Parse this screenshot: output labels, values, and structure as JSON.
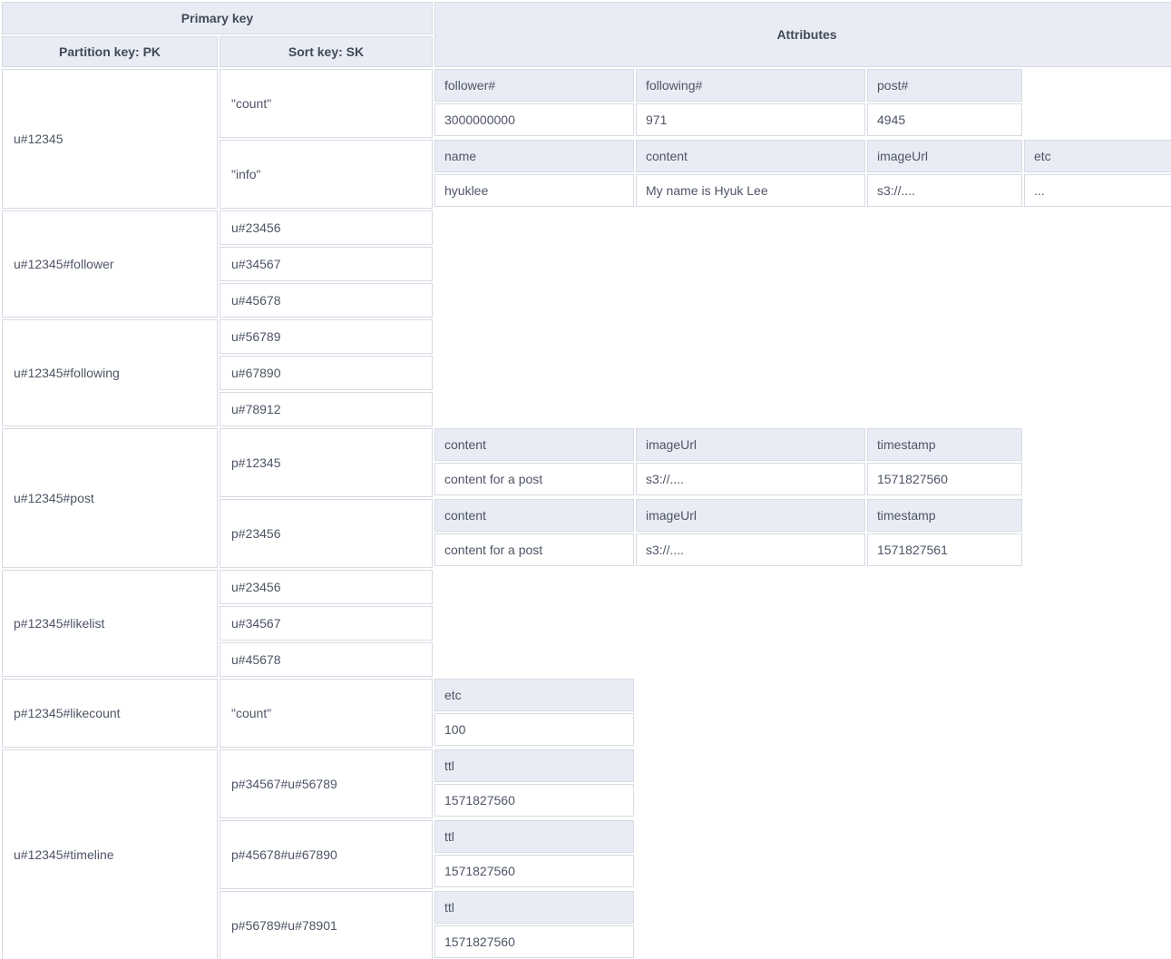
{
  "table": {
    "header": {
      "primary_key": "Primary key",
      "partition_key": "Partition key: PK",
      "sort_key": "Sort key: SK",
      "attributes": "Attributes"
    },
    "sections": [
      {
        "pk": "u#12345",
        "rows": [
          {
            "sk": "\"count\"",
            "attrs": {
              "headers": [
                "follower#",
                "following#",
                "post#"
              ],
              "values": [
                "3000000000",
                "971",
                "4945"
              ]
            }
          },
          {
            "sk": "\"info\"",
            "attrs": {
              "headers": [
                "name",
                "content",
                "imageUrl",
                "etc"
              ],
              "values": [
                "hyuklee",
                "My name is Hyuk Lee",
                "s3://....",
                "..."
              ]
            }
          }
        ]
      },
      {
        "pk": "u#12345#follower",
        "rows": [
          {
            "sk": "u#23456"
          },
          {
            "sk": "u#34567"
          },
          {
            "sk": "u#45678"
          }
        ]
      },
      {
        "pk": "u#12345#following",
        "rows": [
          {
            "sk": "u#56789"
          },
          {
            "sk": "u#67890"
          },
          {
            "sk": "u#78912"
          }
        ]
      },
      {
        "pk": "u#12345#post",
        "rows": [
          {
            "sk": "p#12345",
            "attrs": {
              "headers": [
                "content",
                "imageUrl",
                "timestamp"
              ],
              "values": [
                "content for a post",
                "s3://....",
                "1571827560"
              ]
            }
          },
          {
            "sk": "p#23456",
            "attrs": {
              "headers": [
                "content",
                "imageUrl",
                "timestamp"
              ],
              "values": [
                "content for a post",
                "s3://....",
                "1571827561"
              ]
            }
          }
        ]
      },
      {
        "pk": "p#12345#likelist",
        "rows": [
          {
            "sk": "u#23456"
          },
          {
            "sk": "u#34567"
          },
          {
            "sk": "u#45678"
          }
        ]
      },
      {
        "pk": "p#12345#likecount",
        "rows": [
          {
            "sk": "\"count\"",
            "attrs": {
              "headers": [
                "etc"
              ],
              "values": [
                "100"
              ]
            }
          }
        ]
      },
      {
        "pk": "u#12345#timeline",
        "rows": [
          {
            "sk": "p#34567#u#56789",
            "attrs": {
              "headers": [
                "ttl"
              ],
              "values": [
                "1571827560"
              ]
            }
          },
          {
            "sk": "p#45678#u#67890",
            "attrs": {
              "headers": [
                "ttl"
              ],
              "values": [
                "1571827560"
              ]
            }
          },
          {
            "sk": "p#56789#u#78901",
            "attrs": {
              "headers": [
                "ttl"
              ],
              "values": [
                "1571827560"
              ]
            }
          }
        ]
      }
    ]
  },
  "colors": {
    "header_bg": "#e9ecf4",
    "cell_bg": "#ffffff",
    "border": "#d6dae2",
    "text": "#4d5564",
    "header_text": "#414a59"
  }
}
